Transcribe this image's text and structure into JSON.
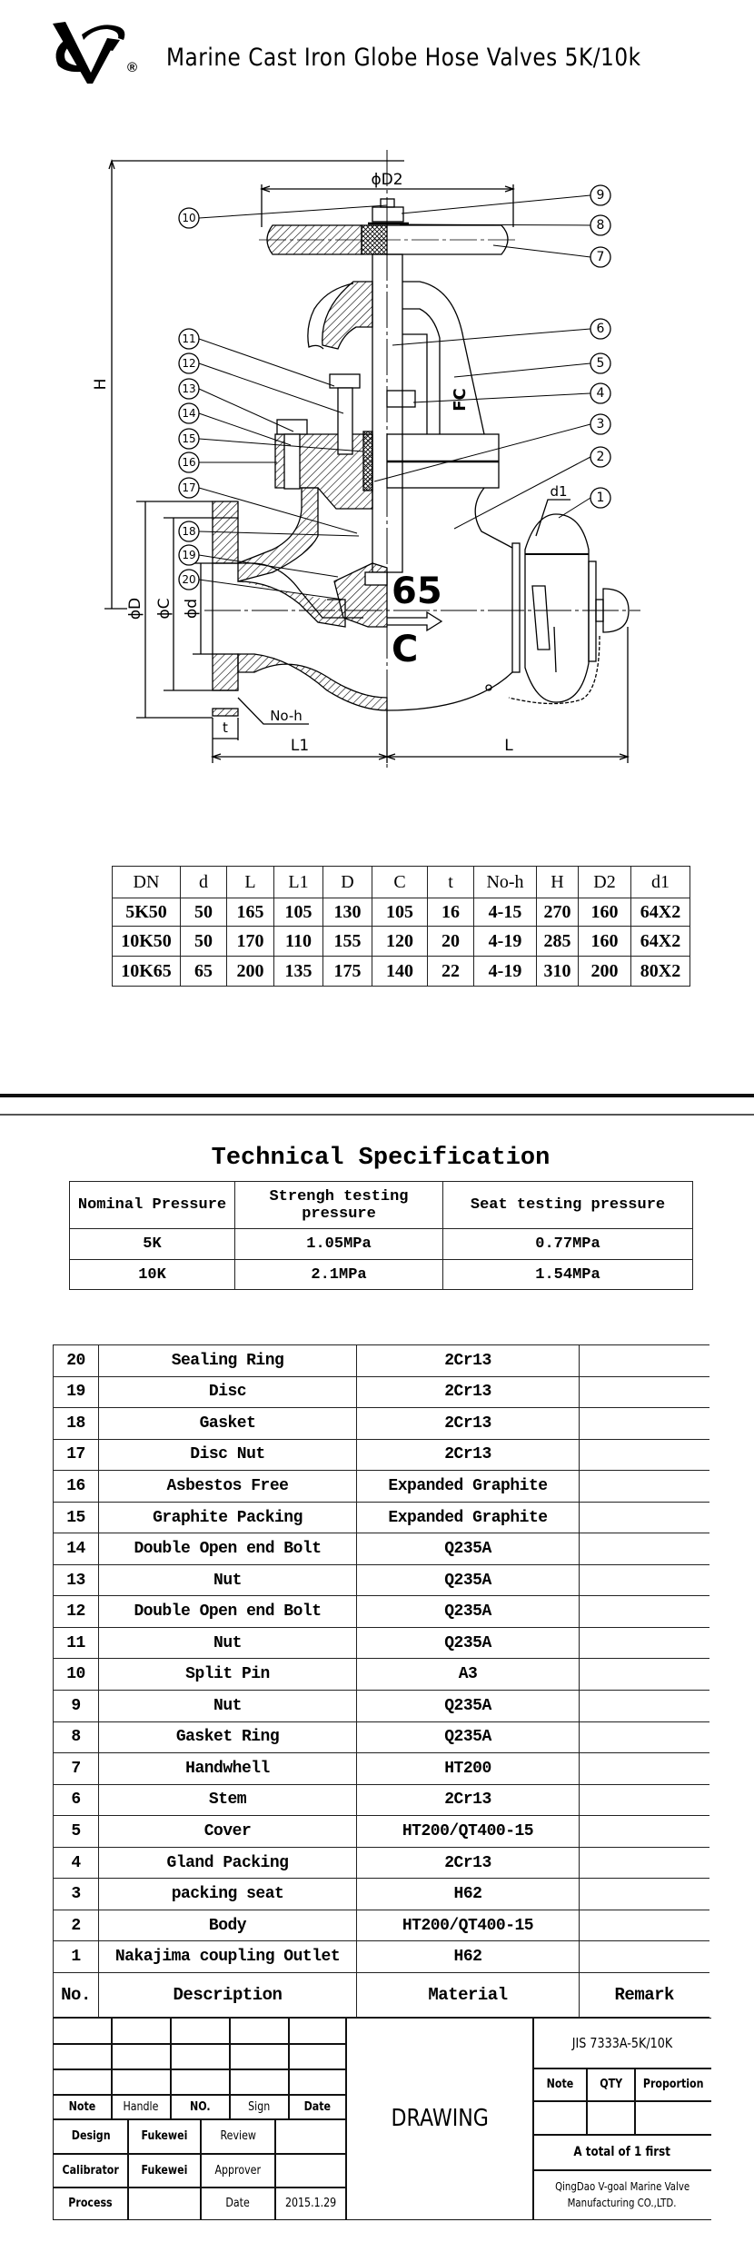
{
  "header": {
    "logo_mark": "VG",
    "registered_symbol": "®",
    "title": "Marine Cast Iron Globe Hose Valves 5K/10k"
  },
  "drawing": {
    "labels": {
      "D2": "ϕD2",
      "H": "H",
      "D": "ϕD",
      "C": "ϕC",
      "d": "ϕd",
      "L1": "L1",
      "L": "L",
      "t": "t",
      "noh": "No-h",
      "d1": "d1",
      "fc": "FC",
      "size": "65",
      "c_mark": "C"
    },
    "callouts": [
      "1",
      "2",
      "3",
      "4",
      "5",
      "6",
      "7",
      "8",
      "9",
      "10",
      "11",
      "12",
      "13",
      "14",
      "15",
      "16",
      "17",
      "18",
      "19",
      "20"
    ]
  },
  "dimensions_table": {
    "headers": [
      "DN",
      "d",
      "L",
      "L1",
      "D",
      "C",
      "t",
      "No-h",
      "H",
      "D2",
      "d1"
    ],
    "rows": [
      [
        "5K50",
        "50",
        "165",
        "105",
        "130",
        "105",
        "16",
        "4-15",
        "270",
        "160",
        "64X2"
      ],
      [
        "10K50",
        "50",
        "170",
        "110",
        "155",
        "120",
        "20",
        "4-19",
        "285",
        "160",
        "64X2"
      ],
      [
        "10K65",
        "65",
        "200",
        "135",
        "175",
        "140",
        "22",
        "4-19",
        "310",
        "200",
        "80X2"
      ]
    ]
  },
  "technical_specification": {
    "title": "Technical Specification",
    "headers": [
      "Nominal Pressure",
      "Strengh testing pressure",
      "Seat testing pressure"
    ],
    "rows": [
      [
        "5K",
        "1.05MPa",
        "0.77MPa"
      ],
      [
        "10K",
        "2.1MPa",
        "1.54MPa"
      ]
    ]
  },
  "parts_table": {
    "headers": [
      "No.",
      "Description",
      "Material",
      "Remark"
    ],
    "rows": [
      [
        "20",
        "Sealing Ring",
        "2Cr13",
        ""
      ],
      [
        "19",
        "Disc",
        "2Cr13",
        ""
      ],
      [
        "18",
        "Gasket",
        "2Cr13",
        ""
      ],
      [
        "17",
        "Disc Nut",
        "2Cr13",
        ""
      ],
      [
        "16",
        "Asbestos Free",
        "Expanded Graphite",
        ""
      ],
      [
        "15",
        "Graphite Packing",
        "Expanded Graphite",
        ""
      ],
      [
        "14",
        "Double Open end Bolt",
        "Q235A",
        ""
      ],
      [
        "13",
        "Nut",
        "Q235A",
        ""
      ],
      [
        "12",
        "Double Open end Bolt",
        "Q235A",
        ""
      ],
      [
        "11",
        "Nut",
        "Q235A",
        ""
      ],
      [
        "10",
        "Split Pin",
        "A3",
        ""
      ],
      [
        "9",
        "Nut",
        "Q235A",
        ""
      ],
      [
        "8",
        "Gasket Ring",
        "Q235A",
        ""
      ],
      [
        "7",
        "Handwhell",
        "HT200",
        ""
      ],
      [
        "6",
        "Stem",
        "2Cr13",
        ""
      ],
      [
        "5",
        "Cover",
        "HT200/QT400-15",
        ""
      ],
      [
        "4",
        "Gland Packing",
        "2Cr13",
        ""
      ],
      [
        "3",
        "packing seat",
        "H62",
        ""
      ],
      [
        "2",
        "Body",
        "HT200/QT400-15",
        ""
      ],
      [
        "1",
        "Nakajima coupling Outlet",
        "H62",
        ""
      ]
    ]
  },
  "title_block": {
    "revision_headers": [
      "Note",
      "Handle",
      "NO.",
      "Sign",
      "Date"
    ],
    "design_label": "Design",
    "design_value": "Fukewei",
    "review_label": "Review",
    "review_value": "",
    "calibrator_label": "Calibrator",
    "calibrator_value": "Fukewei",
    "approver_label": "Approver",
    "approver_value": "",
    "process_label": "Process",
    "process_value": "",
    "date_label": "Date",
    "date_value": "2015.1.29",
    "drawing_label": "DRAWING",
    "standard": "JIS 7333A-5K/10K",
    "note_label": "Note",
    "qty_label": "QTY",
    "proportion_label": "Proportion",
    "sheets": "A total of 1 first",
    "company_line1": "QingDao V-goal Marine Valve",
    "company_line2": "Manufacturing CO.,LTD."
  }
}
